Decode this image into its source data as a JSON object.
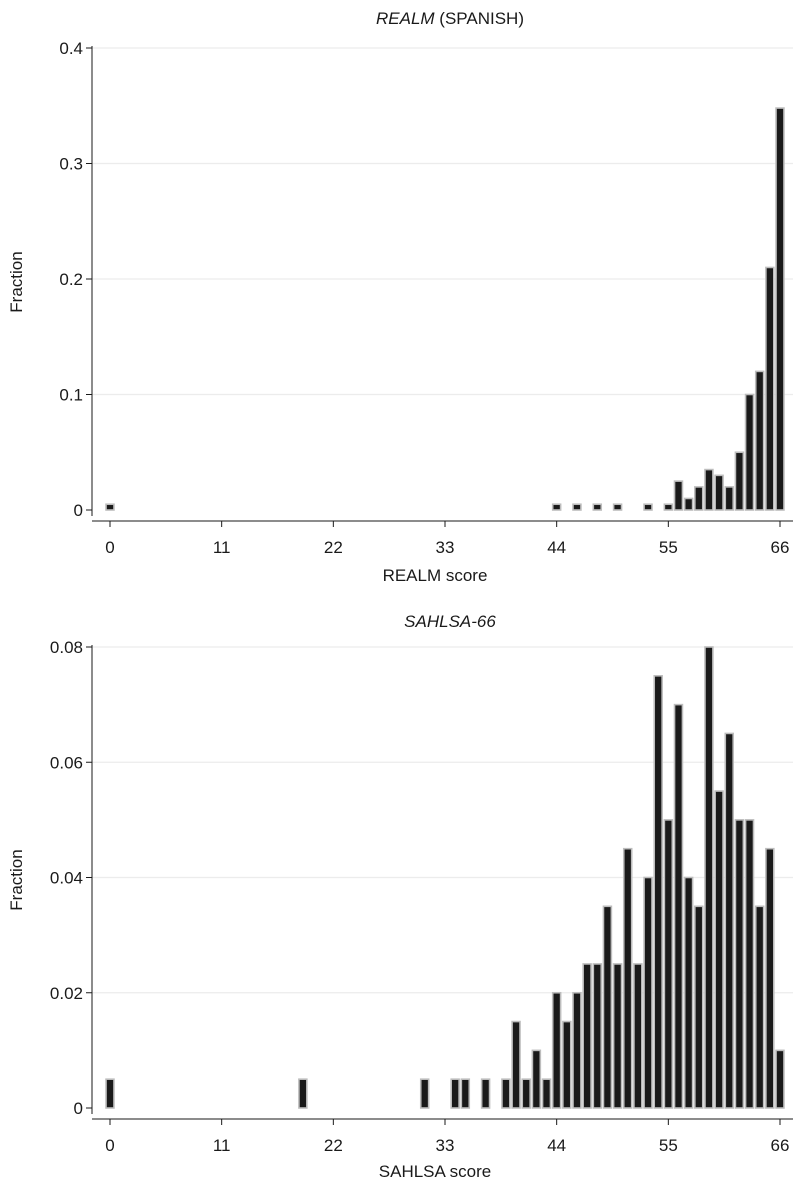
{
  "chart_data": [
    {
      "type": "bar",
      "title_italic": "REALM",
      "title_rest": " (SPANISH)",
      "xlabel": "REALM score",
      "ylabel": "Fraction",
      "xlim": [
        0,
        66
      ],
      "ylim": [
        0,
        0.4
      ],
      "xticks": [
        "0",
        "11",
        "22",
        "33",
        "44",
        "55",
        "66"
      ],
      "yticks": [
        "0",
        "0.1",
        "0.2",
        "0.3",
        "0.4"
      ],
      "grid": true,
      "bar_color": "#1a1a1a",
      "x": [
        0,
        44,
        46,
        48,
        50,
        53,
        55,
        56,
        57,
        58,
        59,
        60,
        61,
        62,
        63,
        64,
        65,
        66
      ],
      "values": [
        0.005,
        0.005,
        0.005,
        0.005,
        0.005,
        0.005,
        0.005,
        0.025,
        0.01,
        0.02,
        0.035,
        0.03,
        0.02,
        0.05,
        0.1,
        0.12,
        0.21,
        0.348
      ]
    },
    {
      "type": "bar",
      "title_italic": "SAHLSA-66",
      "title_rest": "",
      "xlabel": "SAHLSA score",
      "ylabel": "Fraction",
      "xlim": [
        0,
        66
      ],
      "ylim": [
        0,
        0.08
      ],
      "xticks": [
        "0",
        "11",
        "22",
        "33",
        "44",
        "55",
        "66"
      ],
      "yticks": [
        "0",
        "0.02",
        "0.04",
        "0.06",
        "0.08"
      ],
      "grid": true,
      "bar_color": "#1a1a1a",
      "x": [
        0,
        19,
        31,
        34,
        35,
        37,
        39,
        40,
        41,
        42,
        43,
        44,
        45,
        46,
        47,
        48,
        49,
        50,
        51,
        52,
        53,
        54,
        55,
        56,
        57,
        58,
        59,
        60,
        61,
        62,
        63,
        64,
        65,
        66
      ],
      "values": [
        0.005,
        0.005,
        0.005,
        0.005,
        0.005,
        0.005,
        0.005,
        0.015,
        0.005,
        0.01,
        0.005,
        0.02,
        0.015,
        0.02,
        0.025,
        0.025,
        0.035,
        0.025,
        0.045,
        0.025,
        0.04,
        0.075,
        0.05,
        0.07,
        0.04,
        0.035,
        0.08,
        0.055,
        0.065,
        0.05,
        0.05,
        0.035,
        0.045,
        0.01
      ]
    }
  ]
}
